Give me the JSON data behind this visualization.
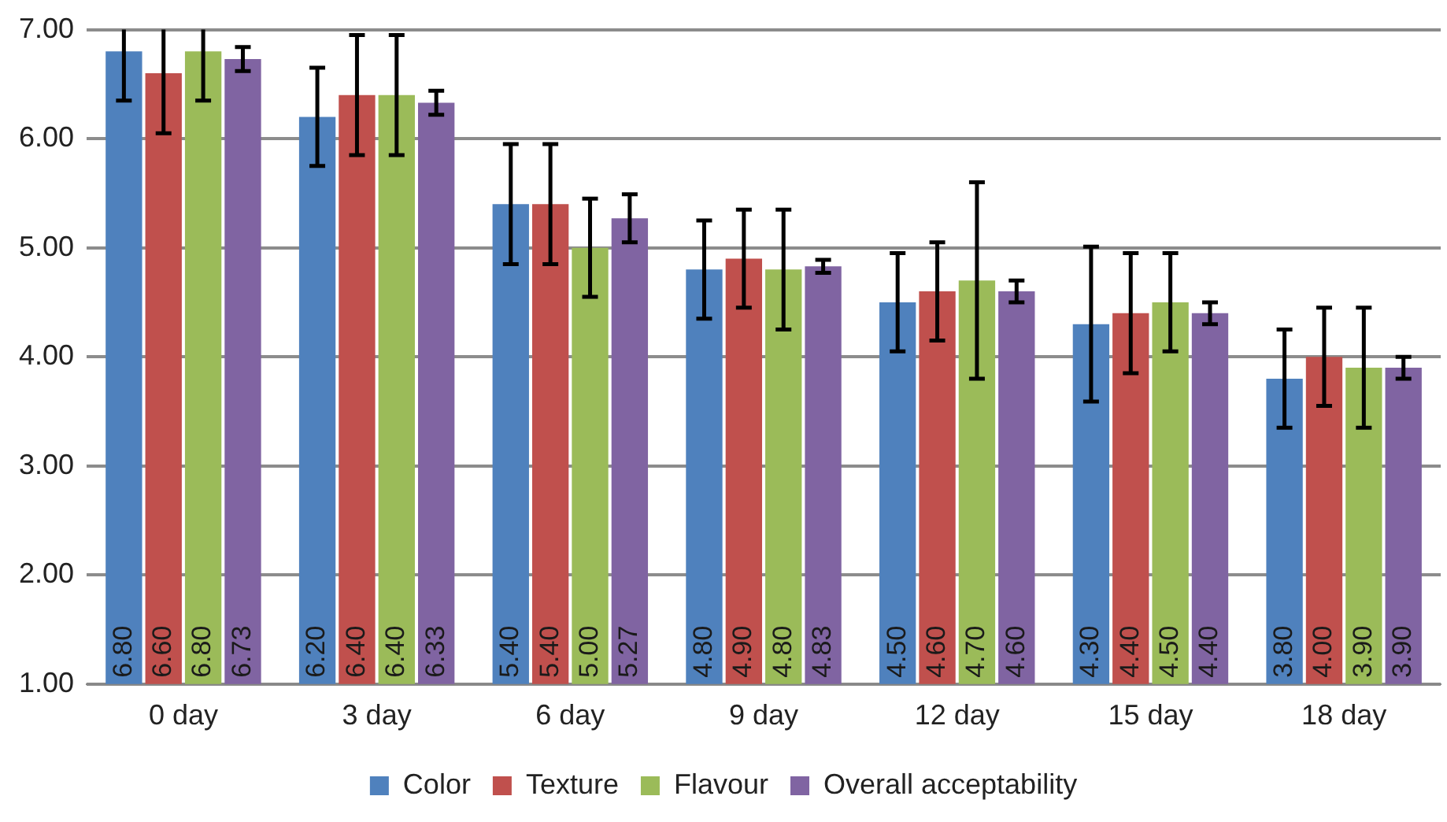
{
  "chart_data": {
    "type": "bar",
    "categories": [
      "0 day",
      "3 day",
      "6 day",
      "9 day",
      "12 day",
      "15 day",
      "18 day"
    ],
    "series": [
      {
        "name": "Color",
        "color": "#4f81bd",
        "values": [
          6.8,
          6.2,
          5.4,
          4.8,
          4.5,
          4.3,
          3.8
        ],
        "errors": [
          [
            6.35,
            7
          ],
          0.45,
          0.55,
          0.45,
          0.45,
          0.71,
          0.45
        ],
        "value_labels": [
          "6.80",
          "6.20",
          "5.40",
          "4.80",
          "4.50",
          "4.30",
          "3.80"
        ]
      },
      {
        "name": "Texture",
        "color": "#c0504d",
        "values": [
          6.6,
          6.4,
          5.4,
          4.9,
          4.6,
          4.4,
          4.0
        ],
        "errors": [
          [
            6.05,
            7
          ],
          0.55,
          0.55,
          0.45,
          0.45,
          0.55,
          0.45
        ],
        "value_labels": [
          "6.60",
          "6.40",
          "5.40",
          "4.90",
          "4.60",
          "4.40",
          "4.00"
        ]
      },
      {
        "name": "Flavour",
        "color": "#9bbb59",
        "values": [
          6.8,
          6.4,
          5.0,
          4.8,
          4.7,
          4.5,
          3.9
        ],
        "errors": [
          [
            6.35,
            7
          ],
          0.55,
          0.45,
          0.55,
          0.9,
          0.45,
          0.55
        ],
        "value_labels": [
          "6.80",
          "6.40",
          "5.00",
          "4.80",
          "4.70",
          "4.50",
          "3.90"
        ]
      },
      {
        "name": "Overall acceptability",
        "color": "#8064a2",
        "values": [
          6.73,
          6.33,
          5.27,
          4.83,
          4.6,
          4.4,
          3.9
        ],
        "errors": [
          0.11,
          0.11,
          0.22,
          0.06,
          0.1,
          0.1,
          0.1
        ],
        "value_labels": [
          "6.73",
          "6.33",
          "5.27",
          "4.83",
          "4.60",
          "4.40",
          "3.90"
        ]
      }
    ],
    "ylim": [
      1,
      7
    ],
    "yticks": [
      {
        "value": 1,
        "label": "1.00"
      },
      {
        "value": 2,
        "label": "2.00"
      },
      {
        "value": 3,
        "label": "3.00"
      },
      {
        "value": 4,
        "label": "4.00"
      },
      {
        "value": 5,
        "label": "5.00"
      },
      {
        "value": 6,
        "label": "6.00"
      },
      {
        "value": 7,
        "label": "7.00"
      }
    ],
    "grid": "y",
    "legend": "bottom"
  }
}
